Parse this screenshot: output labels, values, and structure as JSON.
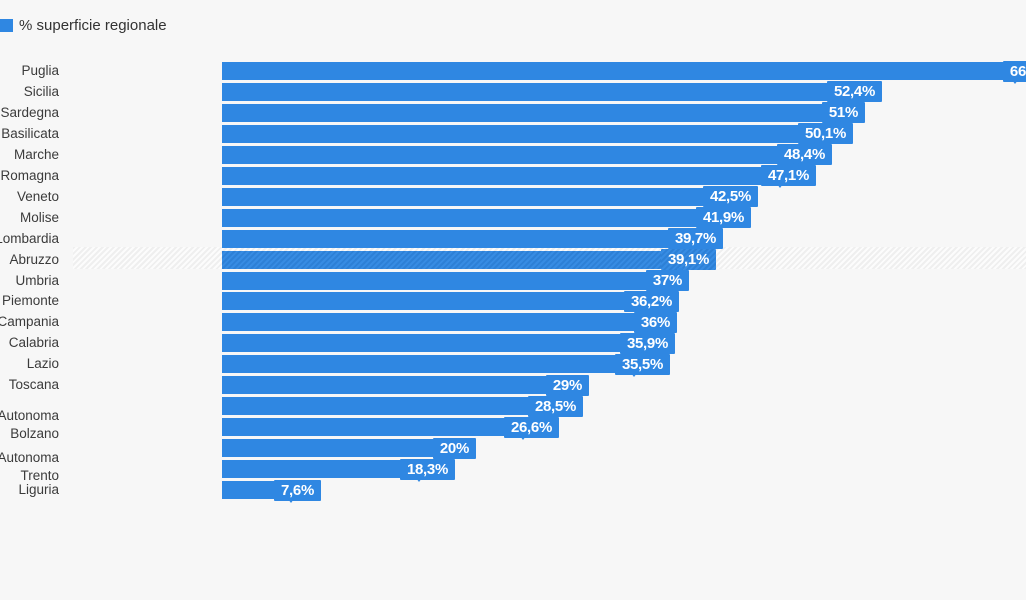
{
  "legend": {
    "label": "% superficie regionale",
    "color": "#2f87e2"
  },
  "chart_data": {
    "type": "bar",
    "orientation": "horizontal",
    "series_name": "% superficie regionale",
    "unit": "%",
    "decimal_separator": ",",
    "x_range": [
      0,
      66
    ],
    "grid": false,
    "legend_position": "top-left",
    "highlighted_row": "Abruzzo",
    "note": "Puglia bar and its value label are clipped at the right image edge (only '66' visible); two rows show no visible region label (clipped off-canvas)",
    "colors": {
      "bar": "#2f87e2",
      "background": "#f7f7f7",
      "value_text": "#ffffff",
      "label_text": "#3b3b3b",
      "highlight_hatch": "#efefef"
    },
    "bars": [
      {
        "label_lines": [
          "Puglia"
        ],
        "value": 66,
        "display": "66",
        "clipped": true
      },
      {
        "label_lines": [
          "Sicilia"
        ],
        "value": 52.4,
        "display": "52,4%"
      },
      {
        "label_lines": [
          "Sardegna"
        ],
        "value": 51,
        "display": "51%"
      },
      {
        "label_lines": [
          "Basilicata"
        ],
        "value": 50.1,
        "display": "50,1%"
      },
      {
        "label_lines": [
          "Marche"
        ],
        "value": 48.4,
        "display": "48,4%"
      },
      {
        "label_lines": [
          "Emilia-Romagna"
        ],
        "value": 47.1,
        "display": "47,1%"
      },
      {
        "label_lines": [
          "Veneto"
        ],
        "value": 42.5,
        "display": "42,5%"
      },
      {
        "label_lines": [
          "Molise"
        ],
        "value": 41.9,
        "display": "41,9%"
      },
      {
        "label_lines": [
          "Lombardia"
        ],
        "value": 39.7,
        "display": "39,7%"
      },
      {
        "label_lines": [
          "Abruzzo"
        ],
        "value": 39.1,
        "display": "39,1%",
        "highlighted": true
      },
      {
        "label_lines": [
          "Umbria"
        ],
        "value": 37,
        "display": "37%"
      },
      {
        "label_lines": [
          "Piemonte"
        ],
        "value": 36.2,
        "display": "36,2%"
      },
      {
        "label_lines": [
          "Campania"
        ],
        "value": 36,
        "display": "36%"
      },
      {
        "label_lines": [
          "Calabria"
        ],
        "value": 35.9,
        "display": "35,9%"
      },
      {
        "label_lines": [
          "Lazio"
        ],
        "value": 35.5,
        "display": "35,5%"
      },
      {
        "label_lines": [
          "Toscana"
        ],
        "value": 29,
        "display": "29%"
      },
      {
        "label_lines": [
          ""
        ],
        "value": 28.5,
        "display": "28,5%"
      },
      {
        "label_lines": [
          "Provincia Autonoma",
          "Bolzano"
        ],
        "value": 26.6,
        "display": "26,6%"
      },
      {
        "label_lines": [
          ""
        ],
        "value": 20,
        "display": "20%"
      },
      {
        "label_lines": [
          "Provincia Autonoma",
          "Trento"
        ],
        "value": 18.3,
        "display": "18,3%"
      },
      {
        "label_lines": [
          "Liguria"
        ],
        "value": 7.6,
        "display": "7,6%"
      }
    ]
  }
}
